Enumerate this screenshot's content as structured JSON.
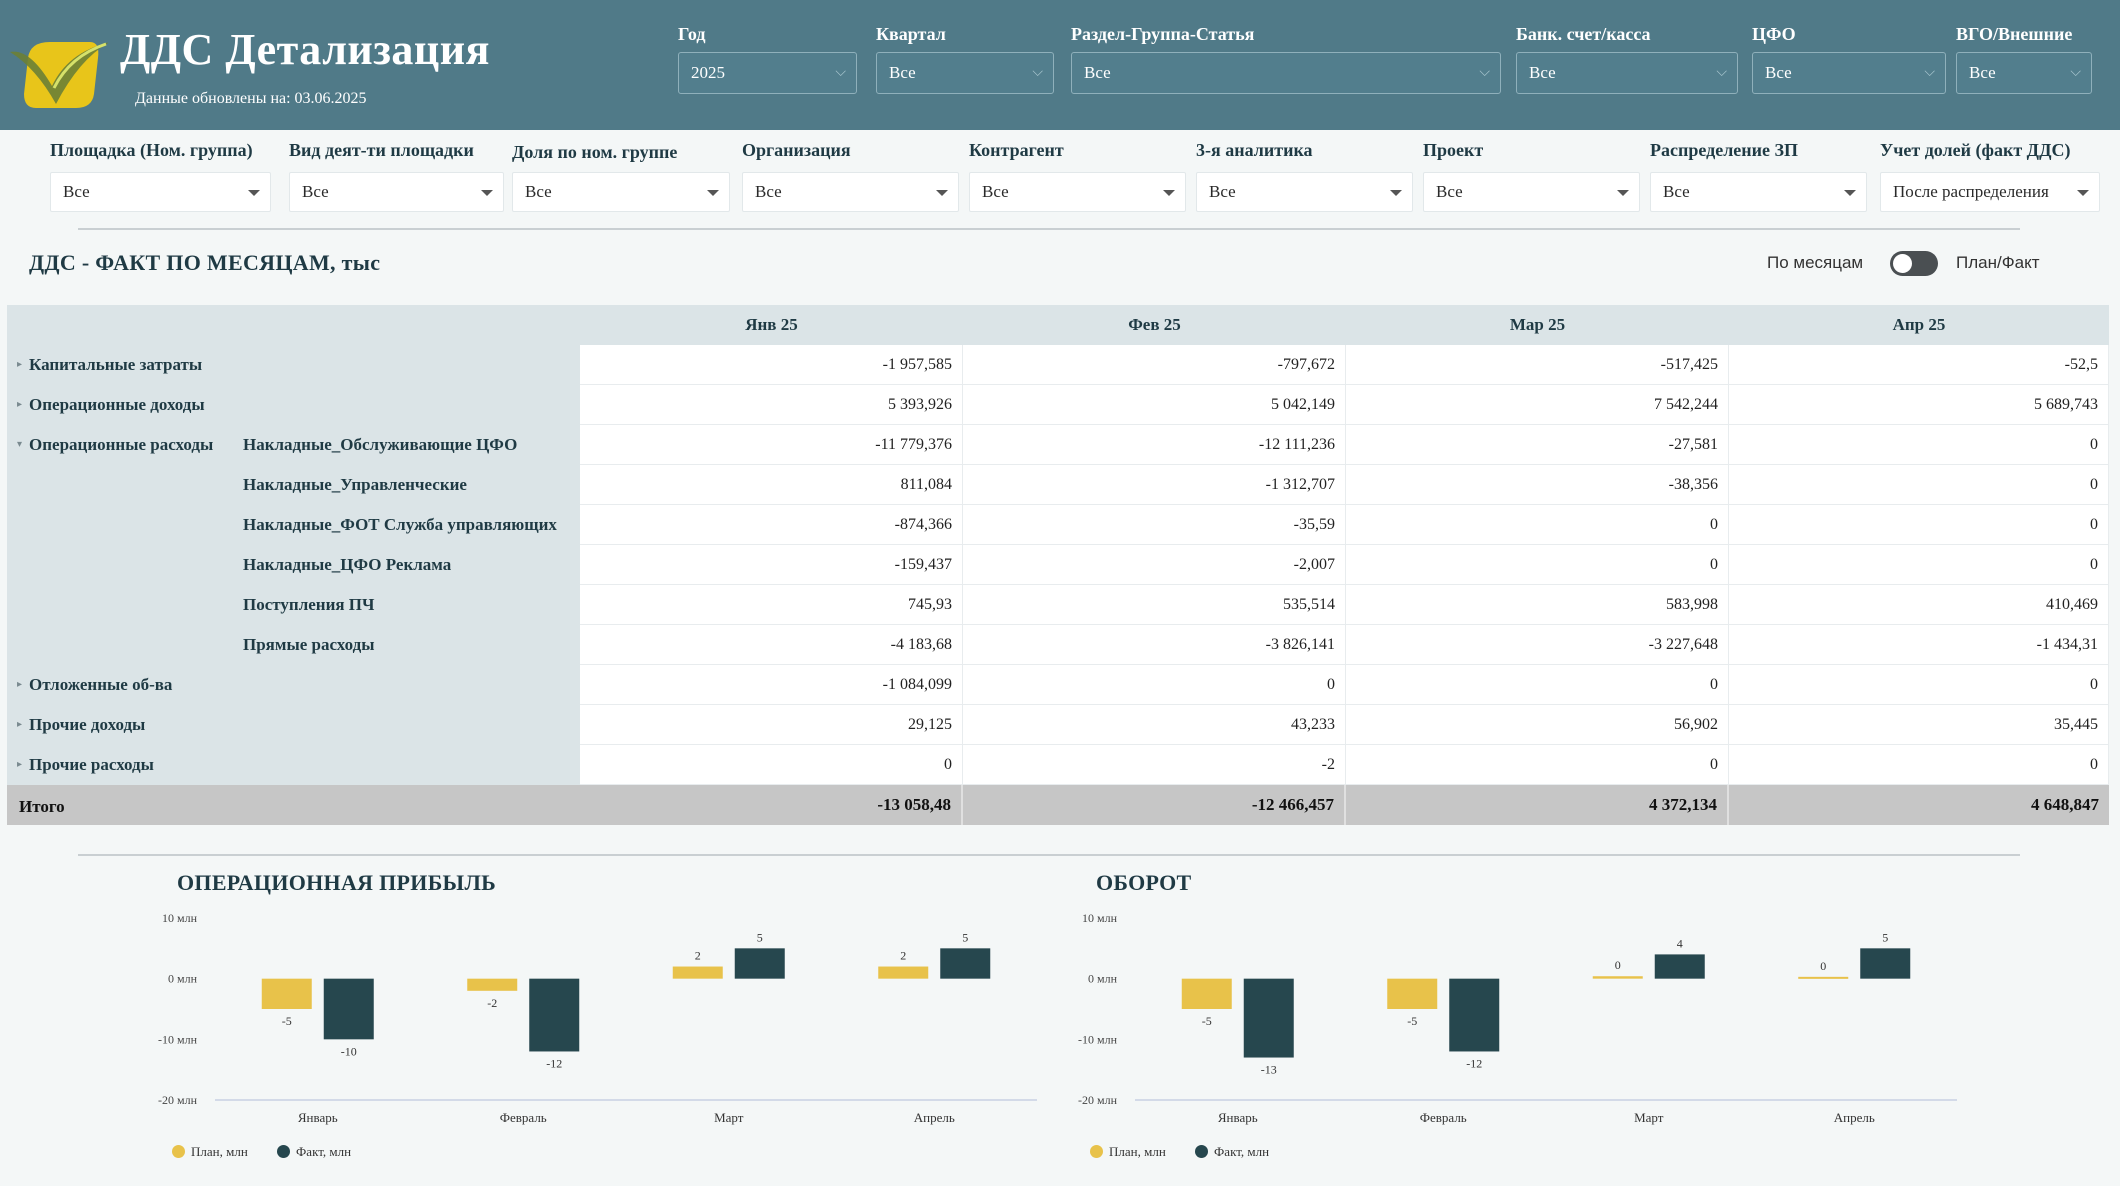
{
  "header": {
    "title": "ДДС Детализация",
    "updated": "Данные обновлены на: 03.06.2025",
    "filters": [
      {
        "label": "Год",
        "value": "2025"
      },
      {
        "label": "Квартал",
        "value": "Все"
      },
      {
        "label": "Раздел-Группа-Статья",
        "value": "Все"
      },
      {
        "label": "Банк. счет/касса",
        "value": "Все"
      },
      {
        "label": "ЦФО",
        "value": "Все"
      },
      {
        "label": "ВГО/Внешние",
        "value": "Все"
      }
    ]
  },
  "filters2": [
    {
      "label": "Площадка (Ном. группа)",
      "value": "Все"
    },
    {
      "label": "Вид деят-ти площадки",
      "value": "Все"
    },
    {
      "label": "Доля по ном. группе",
      "value": "Все"
    },
    {
      "label": "Организация",
      "value": "Все"
    },
    {
      "label": "Контрагент",
      "value": "Все"
    },
    {
      "label": "3-я аналитика",
      "value": "Все"
    },
    {
      "label": "Проект",
      "value": "Все"
    },
    {
      "label": "Распределение ЗП",
      "value": "Все"
    },
    {
      "label": "Учет долей (факт ДДС)",
      "value": "После распределения"
    }
  ],
  "section": {
    "title": "ДДС - ФАКТ ПО МЕСЯЦАМ, тыс",
    "toggle_left": "По месяцам",
    "toggle_right": "План/Факт"
  },
  "table": {
    "columns": [
      "Янв 25",
      "Фев 25",
      "Мар 25",
      "Апр 25"
    ],
    "rows": [
      {
        "group": "Капитальные затраты",
        "sub": "",
        "marker": "right",
        "values": [
          "-1 957,585",
          "-797,672",
          "-517,425",
          "-52,5"
        ]
      },
      {
        "group": "Операционные доходы",
        "sub": "",
        "marker": "right",
        "values": [
          "5 393,926",
          "5 042,149",
          "7 542,244",
          "5 689,743"
        ]
      },
      {
        "group": "Операционные расходы",
        "sub": "Накладные_Обслуживающие ЦФО",
        "marker": "down",
        "values": [
          "-11 779,376",
          "-12 111,236",
          "-27,581",
          "0"
        ]
      },
      {
        "group": "",
        "sub": "Накладные_Управленческие",
        "marker": "",
        "values": [
          "811,084",
          "-1 312,707",
          "-38,356",
          "0"
        ]
      },
      {
        "group": "",
        "sub": "Накладные_ФОТ Служба управляющих",
        "marker": "",
        "values": [
          "-874,366",
          "-35,59",
          "0",
          "0"
        ]
      },
      {
        "group": "",
        "sub": "Накладные_ЦФО Реклама",
        "marker": "",
        "values": [
          "-159,437",
          "-2,007",
          "0",
          "0"
        ]
      },
      {
        "group": "",
        "sub": "Поступления ПЧ",
        "marker": "",
        "values": [
          "745,93",
          "535,514",
          "583,998",
          "410,469"
        ]
      },
      {
        "group": "",
        "sub": "Прямые расходы",
        "marker": "",
        "values": [
          "-4 183,68",
          "-3 826,141",
          "-3 227,648",
          "-1 434,31"
        ]
      },
      {
        "group": "Отложенные об-ва",
        "sub": "",
        "marker": "right",
        "values": [
          "-1 084,099",
          "0",
          "0",
          "0"
        ]
      },
      {
        "group": "Прочие доходы",
        "sub": "",
        "marker": "right",
        "values": [
          "29,125",
          "43,233",
          "56,902",
          "35,445"
        ]
      },
      {
        "group": "Прочие расходы",
        "sub": "",
        "marker": "right",
        "values": [
          "0",
          "-2",
          "0",
          "0"
        ]
      }
    ],
    "total": {
      "label": "Итого",
      "values": [
        "-13 058,48",
        "-12 466,457",
        "4 372,134",
        "4 648,847"
      ]
    }
  },
  "colors": {
    "plan": "#e8c24a",
    "fact": "#26474e",
    "header_bg": "#507a88"
  },
  "chart_data": [
    {
      "type": "bar",
      "title": "ОПЕРАЦИОННАЯ ПРИБЫЛЬ",
      "categories": [
        "Январь",
        "Февраль",
        "Март",
        "Апрель"
      ],
      "series": [
        {
          "name": "План, млн",
          "values": [
            -5,
            -2,
            2,
            2
          ],
          "labels": [
            "-5",
            "-2",
            "2",
            "2"
          ]
        },
        {
          "name": "Факт, млн",
          "values": [
            -10,
            -12,
            5,
            5
          ],
          "labels": [
            "-10",
            "-12",
            "5",
            "5"
          ]
        }
      ],
      "yticks": [
        10,
        0,
        -10,
        -20
      ],
      "ytick_labels": [
        "10 млн",
        "0 млн",
        "-10 млн",
        "-20 млн"
      ],
      "ylim": [
        -20,
        10
      ],
      "legend": "bottom-left"
    },
    {
      "type": "bar",
      "title": "ОБОРОТ",
      "categories": [
        "Январь",
        "Февраль",
        "Март",
        "Апрель"
      ],
      "series": [
        {
          "name": "План, млн",
          "values": [
            -5,
            -5,
            0.4,
            0.3
          ],
          "labels": [
            "-5",
            "-5",
            "0",
            "0"
          ]
        },
        {
          "name": "Факт, млн",
          "values": [
            -13,
            -12,
            4,
            5
          ],
          "labels": [
            "-13",
            "-12",
            "4",
            "5"
          ]
        }
      ],
      "yticks": [
        10,
        0,
        -10,
        -20
      ],
      "ytick_labels": [
        "10 млн",
        "0 млн",
        "-10 млн",
        "-20 млн"
      ],
      "ylim": [
        -20,
        10
      ],
      "legend": "bottom-left"
    }
  ]
}
